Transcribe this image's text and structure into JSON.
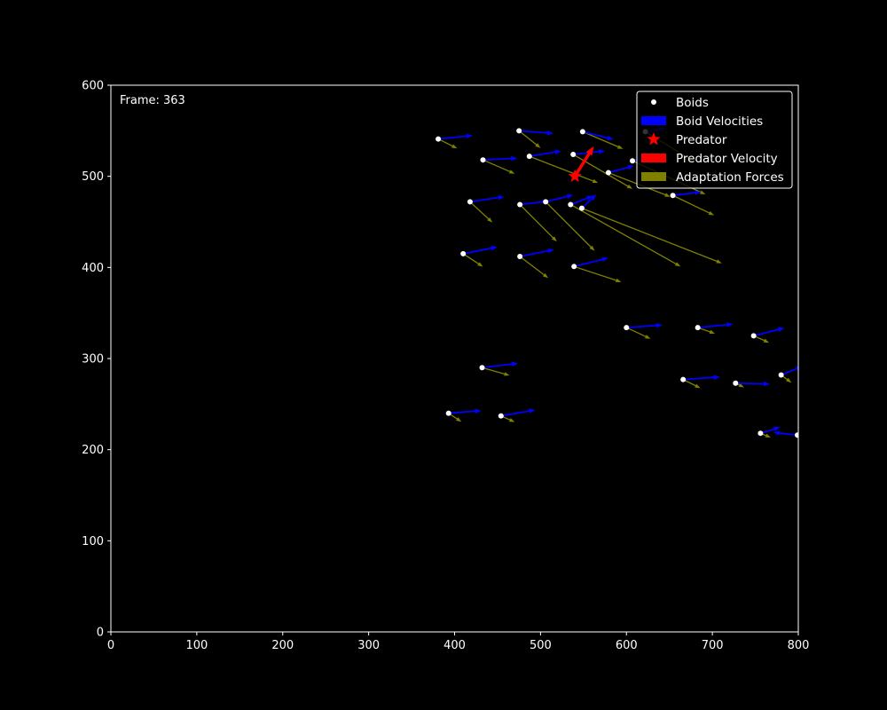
{
  "chart_data": {
    "type": "scatter",
    "frame_label": "Frame: 363",
    "xlim": [
      0,
      800
    ],
    "ylim": [
      0,
      600
    ],
    "x_ticks": [
      0,
      100,
      200,
      300,
      400,
      500,
      600,
      700,
      800
    ],
    "y_ticks": [
      0,
      100,
      200,
      300,
      400,
      500,
      600
    ],
    "grid": false,
    "legend_position": "top-right",
    "colors": {
      "background": "#000000",
      "axes": "#ffffff",
      "boids": "#ffffff",
      "boid_velocity": "#0000ff",
      "predator": "#ff0000",
      "predator_velocity": "#ff0000",
      "adaptation_force": "#808000"
    },
    "legend": [
      {
        "label": "Boids",
        "kind": "dot",
        "color": "#ffffff"
      },
      {
        "label": "Boid Velocities",
        "kind": "patch",
        "color": "#0000ff"
      },
      {
        "label": "Predator",
        "kind": "star",
        "color": "#ff0000"
      },
      {
        "label": "Predator Velocity",
        "kind": "patch",
        "color": "#ff0000"
      },
      {
        "label": "Adaptation Forces",
        "kind": "patch",
        "color": "#808000"
      }
    ],
    "predator": {
      "x": 540,
      "y": 500,
      "vx": 22,
      "vy": 35
    },
    "boids": [
      {
        "x": 381,
        "y": 541,
        "vx": 40,
        "vy": 4,
        "fx": 22,
        "fy": -11
      },
      {
        "x": 475,
        "y": 550,
        "vx": 40,
        "vy": -3,
        "fx": 25,
        "fy": -20
      },
      {
        "x": 549,
        "y": 549,
        "vx": 36,
        "vy": -9,
        "fx": 47,
        "fy": -20
      },
      {
        "x": 433,
        "y": 518,
        "vx": 40,
        "vy": 2,
        "fx": 37,
        "fy": -16
      },
      {
        "x": 487,
        "y": 522,
        "vx": 37,
        "vy": 6,
        "fx": 80,
        "fy": -31
      },
      {
        "x": 538,
        "y": 524,
        "vx": 37,
        "vy": 4,
        "fx": 69,
        "fy": -40
      },
      {
        "x": 579,
        "y": 504,
        "vx": 30,
        "vy": 8,
        "fx": 72,
        "fy": -28
      },
      {
        "x": 607,
        "y": 517,
        "vx": 25,
        "vy": 6,
        "fx": 85,
        "fy": -39
      },
      {
        "x": 622,
        "y": 549,
        "vx": 24,
        "vy": 4,
        "fx": 57,
        "fy": -35
      },
      {
        "x": 654,
        "y": 479,
        "vx": 33,
        "vy": 4,
        "fx": 48,
        "fy": -23
      },
      {
        "x": 418,
        "y": 472,
        "vx": 40,
        "vy": 6,
        "fx": 26,
        "fy": -24
      },
      {
        "x": 476,
        "y": 469,
        "vx": 34,
        "vy": 4,
        "fx": 43,
        "fy": -43
      },
      {
        "x": 506,
        "y": 472,
        "vx": 32,
        "vy": 8,
        "fx": 57,
        "fy": -57
      },
      {
        "x": 535,
        "y": 469,
        "vx": 26,
        "vy": 10,
        "fx": 128,
        "fy": -72
      },
      {
        "x": 548,
        "y": 465,
        "vx": 17,
        "vy": 16,
        "fx": 163,
        "fy": -64
      },
      {
        "x": 410,
        "y": 415,
        "vx": 40,
        "vy": 8,
        "fx": 23,
        "fy": -15
      },
      {
        "x": 476,
        "y": 412,
        "vx": 40,
        "vy": 8,
        "fx": 33,
        "fy": -25
      },
      {
        "x": 539,
        "y": 401,
        "vx": 40,
        "vy": 10,
        "fx": 55,
        "fy": -18
      },
      {
        "x": 600,
        "y": 334,
        "vx": 42,
        "vy": 3,
        "fx": 28,
        "fy": -13
      },
      {
        "x": 683,
        "y": 334,
        "vx": 41,
        "vy": 4,
        "fx": 20,
        "fy": -7
      },
      {
        "x": 748,
        "y": 325,
        "vx": 36,
        "vy": 9,
        "fx": 18,
        "fy": -8
      },
      {
        "x": 432,
        "y": 290,
        "vx": 42,
        "vy": 5,
        "fx": 32,
        "fy": -9
      },
      {
        "x": 666,
        "y": 277,
        "vx": 43,
        "vy": 3,
        "fx": 20,
        "fy": -10
      },
      {
        "x": 727,
        "y": 273,
        "vx": 40,
        "vy": -1,
        "fx": 10,
        "fy": -5
      },
      {
        "x": 780,
        "y": 282,
        "vx": 25,
        "vy": 10,
        "fx": 12,
        "fy": -9
      },
      {
        "x": 393,
        "y": 240,
        "vx": 38,
        "vy": 3,
        "fx": 15,
        "fy": -10
      },
      {
        "x": 454,
        "y": 237,
        "vx": 40,
        "vy": 7,
        "fx": 16,
        "fy": -7
      },
      {
        "x": 756,
        "y": 218,
        "vx": 23,
        "vy": 7,
        "fx": 12,
        "fy": -5
      },
      {
        "x": 799,
        "y": 216,
        "vx": -28,
        "vy": 3,
        "fx": 3,
        "fy": -3
      }
    ]
  }
}
